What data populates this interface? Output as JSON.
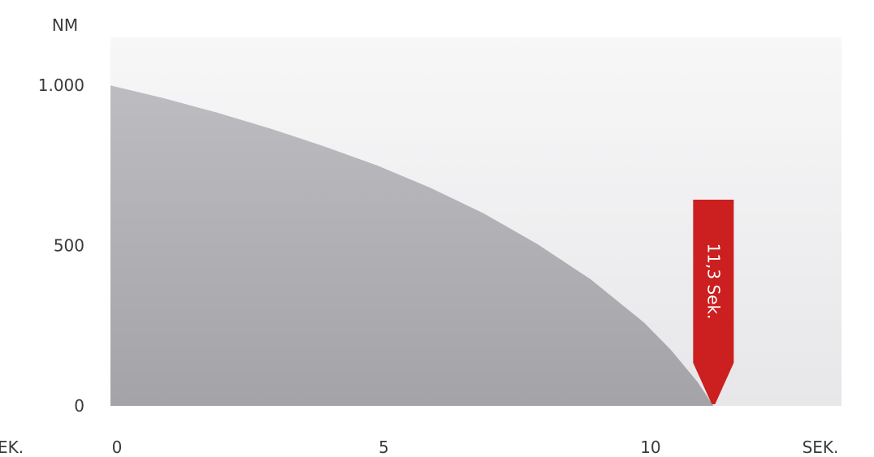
{
  "chart_data": {
    "type": "area",
    "ylabel": "NM",
    "xlabel": "SEK.",
    "x_left_label_fragment": "EK.",
    "y_ticks": [
      {
        "value": 0,
        "label": "0"
      },
      {
        "value": 500,
        "label": "500"
      },
      {
        "value": 1000,
        "label": "1.000"
      }
    ],
    "x_ticks": [
      {
        "value": 0,
        "label": "0"
      },
      {
        "value": 5,
        "label": "5"
      },
      {
        "value": 10,
        "label": "10"
      }
    ],
    "xlim": [
      0,
      13.7
    ],
    "ylim": [
      0,
      1150
    ],
    "series": [
      {
        "x": [
          0,
          1,
          2,
          3,
          4,
          5,
          6,
          7,
          8,
          9,
          10,
          10.5,
          11,
          11.3
        ],
        "y": [
          1000,
          960,
          915,
          865,
          810,
          750,
          680,
          600,
          505,
          395,
          260,
          175,
          75,
          0
        ]
      }
    ],
    "annotation": {
      "x": 11.3,
      "text": "11,3 Sek.",
      "color": "#cc1f1f"
    },
    "colors": {
      "area": "#a9a8ac",
      "plot_bg": "#f3f3f4",
      "arrow": "#cc1f1f"
    }
  }
}
